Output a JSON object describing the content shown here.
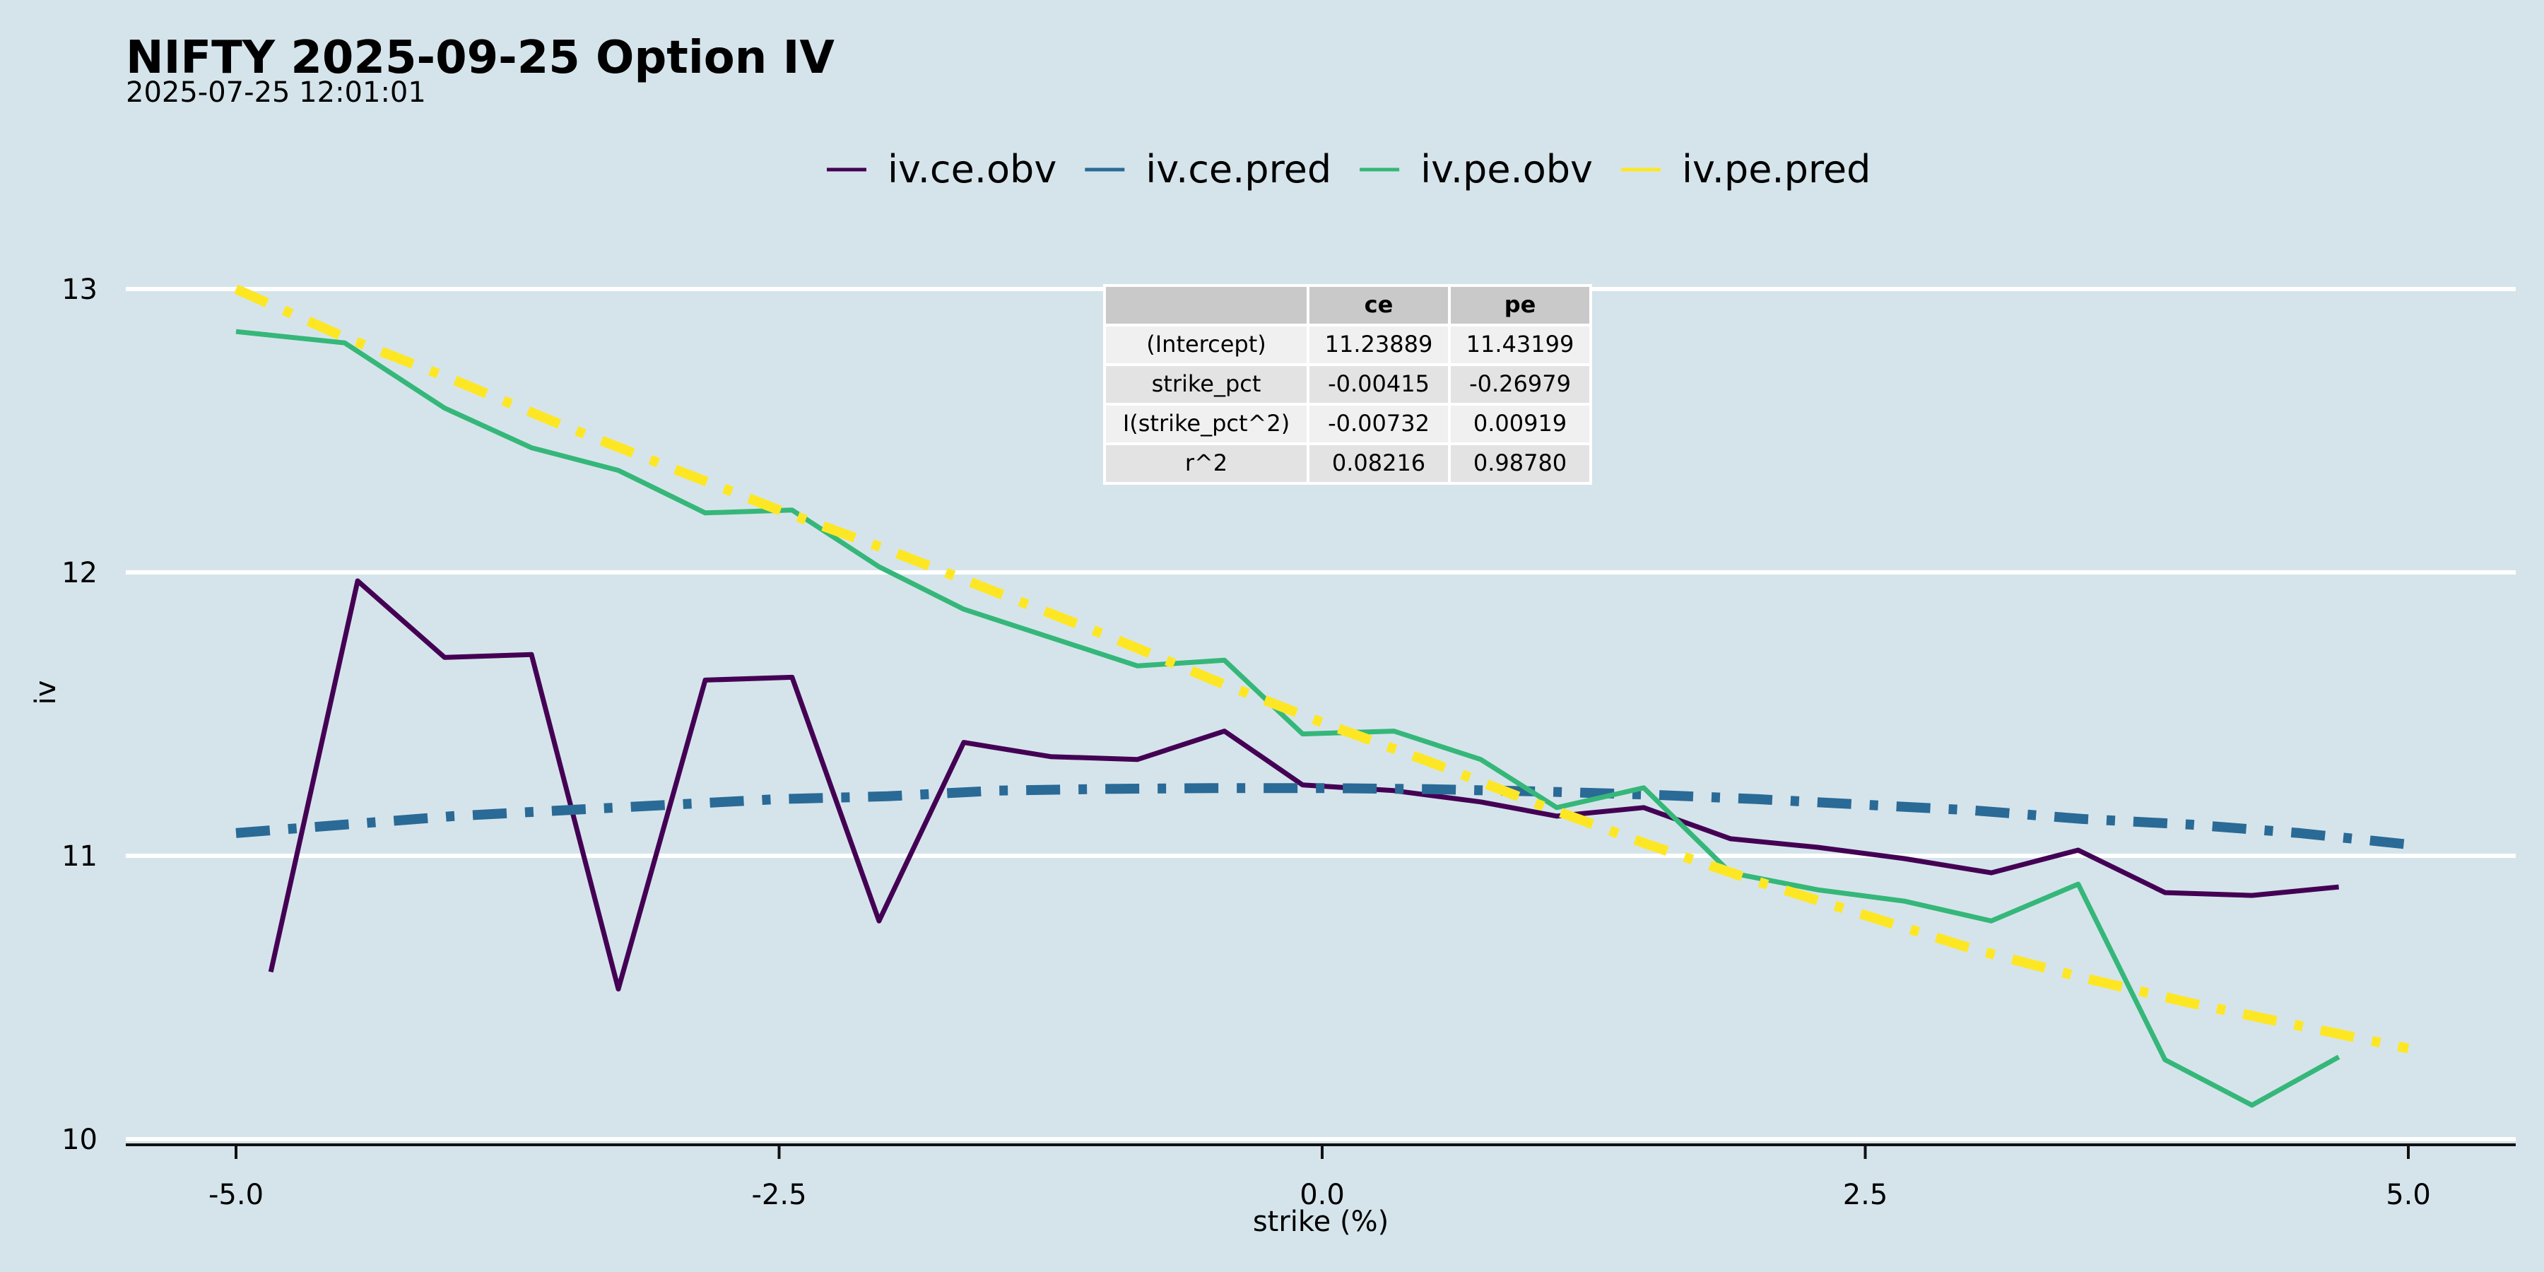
{
  "title": "NIFTY 2025-09-25 Option IV",
  "subtitle": "2025-07-25 12:01:01",
  "chart_data": {
    "type": "line",
    "title": "NIFTY 2025-09-25 Option IV",
    "subtitle": "2025-07-25 12:01:01",
    "xlabel": "strike (%)",
    "ylabel": "iv",
    "xlim": [
      -5.5,
      5.5
    ],
    "ylim": [
      10,
      13.05
    ],
    "x_ticks": [
      -5.0,
      -2.5,
      0.0,
      2.5,
      5.0
    ],
    "x_tick_labels": [
      "-5.0",
      "-2.5",
      "0.0",
      "2.5",
      "5.0"
    ],
    "y_ticks": [
      10,
      11,
      12,
      13
    ],
    "y_tick_labels": [
      "10",
      "11",
      "12",
      "13"
    ],
    "grid": "horizontal",
    "legend_position": "top",
    "series": [
      {
        "name": "iv.ce.obv",
        "color": "#440154",
        "style": "solid",
        "x": [
          -4.84,
          -4.44,
          -4.04,
          -3.64,
          -3.24,
          -2.84,
          -2.44,
          -2.04,
          -1.65,
          -1.25,
          -0.85,
          -0.45,
          -0.09,
          0.33,
          0.73,
          1.08,
          1.48,
          1.88,
          2.28,
          2.68,
          3.08,
          3.48,
          3.88,
          4.28,
          4.68
        ],
        "y": [
          10.59,
          11.97,
          11.7,
          11.71,
          10.53,
          11.62,
          11.63,
          10.77,
          11.4,
          11.35,
          11.34,
          11.44,
          11.25,
          11.23,
          11.19,
          11.14,
          11.17,
          11.06,
          11.03,
          10.99,
          10.94,
          11.02,
          10.87,
          10.86,
          10.89
        ]
      },
      {
        "name": "iv.ce.pred",
        "color": "#2a6a96",
        "style": "dashdot",
        "x": [
          -5.0,
          -4.5,
          -4.0,
          -3.5,
          -3.0,
          -2.5,
          -2.0,
          -1.5,
          -1.0,
          -0.5,
          0.0,
          0.5,
          1.0,
          1.5,
          2.0,
          2.5,
          3.0,
          3.5,
          4.0,
          4.5,
          5.0
        ],
        "y": [
          11.08,
          11.11,
          11.14,
          11.16,
          11.18,
          11.2,
          11.21,
          11.23,
          11.236,
          11.239,
          11.239,
          11.235,
          11.227,
          11.216,
          11.2,
          11.18,
          11.16,
          11.13,
          11.11,
          11.08,
          11.04
        ]
      },
      {
        "name": "iv.pe.obv",
        "color": "#35b779",
        "style": "solid",
        "x": [
          -5.0,
          -4.5,
          -4.04,
          -3.64,
          -3.24,
          -2.84,
          -2.44,
          -2.04,
          -1.65,
          -1.25,
          -0.85,
          -0.45,
          -0.09,
          0.33,
          0.73,
          1.08,
          1.48,
          1.88,
          2.28,
          2.68,
          3.08,
          3.48,
          3.88,
          4.28,
          4.68
        ],
        "y": [
          12.85,
          12.81,
          12.58,
          12.44,
          12.36,
          12.21,
          12.22,
          12.02,
          11.87,
          11.77,
          11.67,
          11.69,
          11.43,
          11.44,
          11.34,
          11.17,
          11.24,
          10.94,
          10.88,
          10.84,
          10.77,
          10.9,
          10.28,
          10.12,
          10.29
        ]
      },
      {
        "name": "iv.pe.pred",
        "color": "#fde725",
        "style": "dashdot",
        "x": [
          -5.0,
          -4.5,
          -4.0,
          -3.5,
          -3.0,
          -2.5,
          -2.0,
          -1.5,
          -1.0,
          -0.5,
          0.0,
          0.5,
          1.0,
          1.5,
          2.0,
          2.5,
          3.0,
          3.5,
          4.0,
          4.5,
          5.0
        ],
        "y": [
          13.0,
          12.83,
          12.68,
          12.52,
          12.37,
          12.22,
          12.08,
          11.93,
          11.78,
          11.62,
          11.47,
          11.33,
          11.18,
          11.04,
          10.91,
          10.79,
          10.67,
          10.57,
          10.48,
          10.4,
          10.32
        ]
      }
    ],
    "coef_table": {
      "columns": [
        "",
        "ce",
        "pe"
      ],
      "rows": [
        [
          "(Intercept)",
          "11.23889",
          "11.43199"
        ],
        [
          "strike_pct",
          "-0.00415",
          "-0.26979"
        ],
        [
          "I(strike_pct^2)",
          "-0.00732",
          "0.00919"
        ],
        [
          "r^2",
          "0.08216",
          "0.98780"
        ]
      ]
    }
  }
}
